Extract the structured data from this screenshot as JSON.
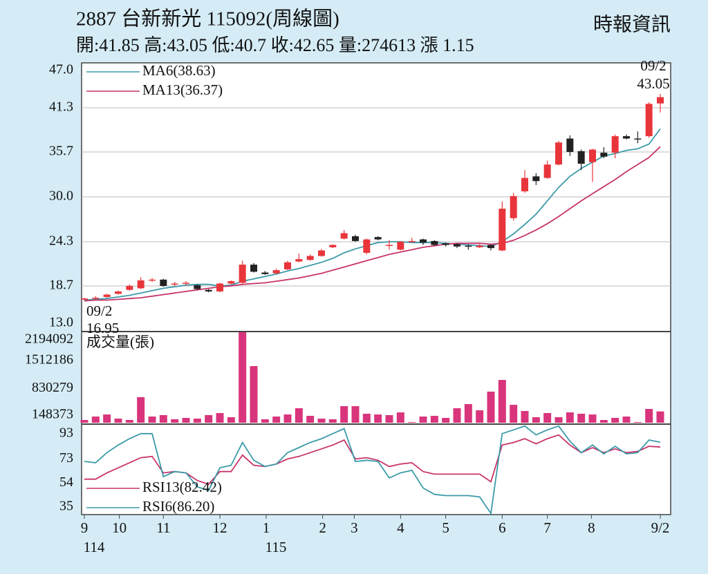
{
  "header": {
    "title": "2887  台新新光 115092(周線圖)",
    "source": "時報資訊",
    "info": "開:41.85 高:43.05 低:40.7 收:42.65 量:274613 漲 1.15"
  },
  "x_axis": {
    "ticks": [
      {
        "value": 0,
        "label": "9"
      },
      {
        "value": 3.1,
        "label": "10"
      },
      {
        "value": 7,
        "label": "11"
      },
      {
        "value": 12,
        "label": "12"
      },
      {
        "value": 16.1,
        "label": "1"
      },
      {
        "value": 21.1,
        "label": "2"
      },
      {
        "value": 23.9,
        "label": "3"
      },
      {
        "value": 28,
        "label": "4"
      },
      {
        "value": 32,
        "label": "5"
      },
      {
        "value": 37,
        "label": "6"
      },
      {
        "value": 41,
        "label": "7"
      },
      {
        "value": 44.9,
        "label": "8"
      },
      {
        "value": 51,
        "label": "9/2"
      }
    ],
    "year_labels": [
      {
        "value": 0,
        "label": "114"
      },
      {
        "value": 16.1,
        "label": "115"
      }
    ]
  },
  "chart_data": [
    {
      "type": "candlestick",
      "up_color": "#e8353b",
      "down_color": "#222222",
      "grid": true,
      "ylim": [
        13,
        47
      ],
      "yticks": [
        {
          "value": 13,
          "label": "13.0"
        },
        18.7,
        24.3,
        {
          "value": 30,
          "label": "30.0"
        },
        35.7,
        41.3,
        {
          "value": 47,
          "label": "47.0"
        }
      ],
      "open": [
        16.95,
        17.1,
        17.3,
        17.7,
        18.2,
        18.4,
        19.4,
        19.5,
        18.9,
        19.0,
        18.8,
        18.2,
        18.0,
        19.0,
        19.1,
        21.4,
        20.4,
        20.3,
        20.8,
        21.8,
        22.0,
        22.5,
        23.6,
        24.7,
        25.0,
        22.9,
        24.9,
        23.8,
        23.3,
        24.3,
        24.6,
        24.4,
        24.1,
        24.0,
        23.8,
        23.6,
        23.9,
        23.2,
        27.3,
        30.7,
        32.6,
        32.4,
        34.1,
        37.4,
        35.8,
        34.4,
        35.6,
        35.6,
        37.7,
        37.4,
        37.7,
        41.85
      ],
      "high": [
        17.2,
        17.4,
        17.7,
        18.1,
        18.9,
        19.8,
        19.7,
        19.6,
        19.2,
        19.3,
        18.9,
        18.3,
        19.1,
        19.4,
        21.9,
        21.6,
        20.6,
        20.9,
        21.9,
        22.8,
        22.7,
        23.4,
        24.0,
        25.8,
        25.2,
        24.7,
        25.0,
        24.5,
        24.4,
        24.8,
        24.7,
        24.5,
        24.2,
        24.1,
        24.0,
        24.0,
        24.0,
        29.4,
        30.5,
        33.4,
        33.0,
        34.6,
        37.1,
        37.8,
        36.0,
        36.1,
        36.3,
        37.9,
        37.9,
        38.3,
        42.0,
        43.05
      ],
      "low": [
        16.95,
        17.0,
        17.2,
        17.6,
        18.1,
        18.3,
        19.2,
        18.6,
        18.7,
        18.8,
        18.2,
        17.9,
        17.9,
        18.9,
        19.0,
        20.4,
        20.1,
        20.2,
        20.7,
        21.7,
        21.9,
        22.4,
        23.5,
        24.6,
        24.3,
        22.7,
        24.5,
        23.3,
        23.2,
        24.2,
        23.9,
        23.8,
        23.7,
        23.5,
        23.3,
        23.5,
        23.2,
        23.1,
        27.0,
        30.5,
        31.5,
        32.3,
        34.0,
        35.2,
        33.4,
        31.9,
        34.9,
        34.9,
        37.3,
        36.8,
        37.5,
        40.7
      ],
      "close": [
        17.1,
        17.2,
        17.6,
        18.0,
        18.7,
        19.4,
        19.5,
        18.7,
        19.0,
        19.1,
        18.3,
        18.0,
        19.0,
        19.3,
        21.4,
        20.5,
        20.2,
        20.7,
        21.7,
        22.1,
        22.5,
        23.2,
        23.9,
        25.4,
        24.4,
        24.6,
        24.6,
        23.9,
        24.3,
        24.4,
        24.2,
        23.9,
        23.9,
        23.7,
        23.7,
        23.8,
        23.5,
        28.5,
        30.1,
        32.4,
        32.0,
        34.1,
        36.9,
        35.7,
        34.2,
        36.0,
        35.1,
        37.7,
        37.4,
        37.3,
        41.8,
        42.65
      ],
      "series": [
        {
          "name": "MA6(38.63)",
          "color": "#3b9aa8",
          "values": [
            16.9,
            17.0,
            17.1,
            17.3,
            17.5,
            17.8,
            18.1,
            18.4,
            18.6,
            18.8,
            18.9,
            18.9,
            18.7,
            18.8,
            19.3,
            19.6,
            19.9,
            20.2,
            20.6,
            20.9,
            21.3,
            21.7,
            22.2,
            22.9,
            23.4,
            23.8,
            24.2,
            24.3,
            24.3,
            24.2,
            24.2,
            24.2,
            24.1,
            24.0,
            23.9,
            23.8,
            23.7,
            24.3,
            25.3,
            26.5,
            27.8,
            29.5,
            31.2,
            32.6,
            33.6,
            34.4,
            35.2,
            35.5,
            35.9,
            36.1,
            36.7,
            38.63
          ]
        },
        {
          "name": "MA13(36.37)",
          "color": "#c8336a",
          "values": [
            16.8,
            16.9,
            16.9,
            17.0,
            17.1,
            17.2,
            17.4,
            17.6,
            17.8,
            18.0,
            18.2,
            18.4,
            18.6,
            18.7,
            18.9,
            19.0,
            19.1,
            19.3,
            19.5,
            19.7,
            20.0,
            20.3,
            20.7,
            21.1,
            21.5,
            21.9,
            22.3,
            22.7,
            23.0,
            23.3,
            23.6,
            23.8,
            24.0,
            24.1,
            24.1,
            24.1,
            24.0,
            24.1,
            24.5,
            25.1,
            25.8,
            26.6,
            27.5,
            28.5,
            29.5,
            30.4,
            31.3,
            32.2,
            33.2,
            34.1,
            35.0,
            36.37
          ]
        }
      ],
      "annotations": [
        {
          "text": "09/2",
          "value": 43.05
        },
        {
          "text": "09/2",
          "value": 16.95
        }
      ]
    },
    {
      "type": "bar",
      "title": "成交量(張)",
      "color": "#d9357c",
      "ylim": [
        0,
        2194092
      ],
      "yticks": [
        2194092,
        1512186,
        830279,
        148373
      ],
      "values": [
        67000,
        150000,
        200000,
        100000,
        67000,
        620000,
        150000,
        185000,
        84000,
        117000,
        100000,
        185000,
        235000,
        134000,
        2194092,
        1373000,
        84000,
        150000,
        200000,
        352000,
        167000,
        100000,
        84000,
        402000,
        402000,
        218000,
        200000,
        185000,
        251000,
        17000,
        150000,
        167000,
        117000,
        352000,
        452000,
        301000,
        754000,
        1038000,
        435000,
        285000,
        134000,
        235000,
        134000,
        251000,
        218000,
        200000,
        67000,
        117000,
        150000,
        17000,
        335000,
        274613
      ]
    },
    {
      "type": "line",
      "ylim": [
        29,
        100
      ],
      "yticks": [
        93,
        73,
        54,
        35
      ],
      "series": [
        {
          "name": "RSI13(82.42)",
          "color": "#c8336a",
          "values": [
            57,
            57,
            62,
            66,
            70,
            74,
            75,
            62,
            63,
            62,
            56,
            53,
            63,
            63,
            76,
            68,
            67,
            69,
            73,
            75,
            78,
            81,
            84,
            88,
            73,
            74,
            72,
            67,
            69,
            70,
            63,
            61,
            61,
            61,
            61,
            61,
            55,
            84,
            86,
            89,
            85,
            89,
            92,
            84,
            78,
            82,
            78,
            81,
            78,
            79,
            83,
            82.42
          ]
        },
        {
          "name": "RSI6(86.20)",
          "color": "#3b9aa8",
          "values": [
            71,
            70,
            78,
            84,
            89,
            93,
            93,
            59,
            63,
            62,
            51,
            48,
            66,
            68,
            86,
            72,
            67,
            69,
            78,
            82,
            86,
            89,
            93,
            97,
            71,
            72,
            71,
            58,
            62,
            64,
            50,
            45,
            44,
            44,
            44,
            43,
            30,
            93,
            96,
            99,
            92,
            96,
            99,
            87,
            78,
            84,
            77,
            83,
            77,
            78,
            88,
            86.2
          ]
        }
      ]
    }
  ]
}
